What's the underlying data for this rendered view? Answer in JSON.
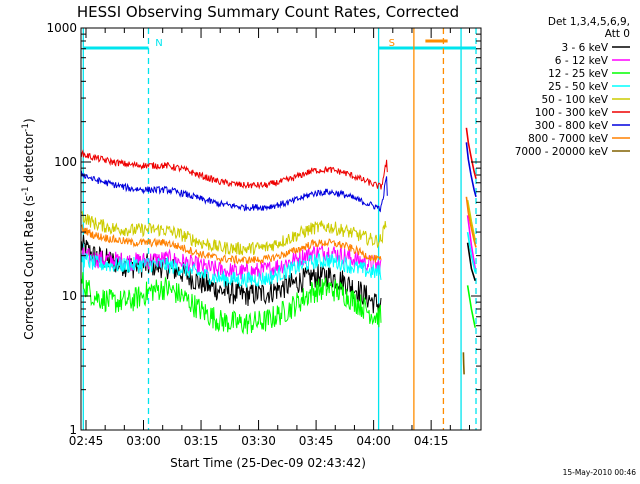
{
  "chart_data": {
    "type": "line",
    "title": "HESSI Observing Summary Count Rates, Corrected",
    "xlabel": "Start Time (25-Dec-09 02:43:42)",
    "ylabel": "Corrected Count Rate (s",
    "ylabel_sup": "-1",
    "ylabel_mid": " detector",
    "ylabel_sup2": "-1",
    "ylabel_end": ")",
    "y_scale": "log",
    "ylim": [
      1,
      1000
    ],
    "y_ticks": [
      "1",
      "10",
      "100",
      "1000"
    ],
    "x_range_minutes": [
      163.7,
      268
    ],
    "x_ticks": [
      {
        "label": "02:45",
        "minute": 165
      },
      {
        "label": "03:00",
        "minute": 180
      },
      {
        "label": "03:15",
        "minute": 195
      },
      {
        "label": "03:30",
        "minute": 210
      },
      {
        "label": "03:45",
        "minute": 225
      },
      {
        "label": "04:00",
        "minute": 240
      },
      {
        "label": "04:15",
        "minute": 255
      }
    ],
    "legend_header": [
      "Det 1,3,4,5,6,9,",
      "Att 0"
    ],
    "legend_placement": "right",
    "timestamp": "15-May-2010 00:46",
    "flags": [
      {
        "label": "N",
        "color": "#00e5ee",
        "start": 164.3,
        "end": 181.3
      },
      {
        "label": "S",
        "color": "#00e5ee",
        "start": 241.3,
        "end": 266.7
      },
      {
        "label": "",
        "color": "#ff8c00",
        "start": 253.5,
        "end": 259.3
      }
    ],
    "vlines": [
      {
        "minute": 164.3,
        "color": "#00e5ee",
        "dash": false
      },
      {
        "minute": 181.3,
        "color": "#00e5ee",
        "dash": true
      },
      {
        "minute": 241.3,
        "color": "#00e5ee",
        "dash": false
      },
      {
        "minute": 250.5,
        "color": "#ff8c00",
        "dash": false
      },
      {
        "minute": 258.2,
        "color": "#ff8c00",
        "dash": true
      },
      {
        "minute": 262.8,
        "color": "#00e5ee",
        "dash": false
      },
      {
        "minute": 266.7,
        "color": "#00e5ee",
        "dash": true
      }
    ],
    "series": [
      {
        "name": "3 - 6 keV",
        "color": "#000000",
        "noise": 0.09,
        "points": [
          [
            163.8,
            24
          ],
          [
            167,
            20
          ],
          [
            172,
            18
          ],
          [
            177,
            16.5
          ],
          [
            182,
            17
          ],
          [
            186,
            16.5
          ],
          [
            190,
            15
          ],
          [
            195,
            12.5
          ],
          [
            200,
            11
          ],
          [
            206,
            10.2
          ],
          [
            212,
            10.5
          ],
          [
            218,
            12
          ],
          [
            224,
            14
          ],
          [
            228,
            14.2
          ],
          [
            232,
            13
          ],
          [
            236,
            11
          ],
          [
            240,
            9
          ],
          [
            242,
            8.5
          ]
        ],
        "tail": [
          [
            264.5,
            25
          ],
          [
            265.5,
            16
          ],
          [
            266.5,
            13
          ]
        ]
      },
      {
        "name": "6 - 12 keV",
        "color": "#ff00ff",
        "noise": 0.07,
        "points": [
          [
            163.8,
            20
          ],
          [
            167,
            19
          ],
          [
            172,
            18.5
          ],
          [
            177,
            18
          ],
          [
            182,
            18.5
          ],
          [
            186,
            18.8
          ],
          [
            190,
            18
          ],
          [
            195,
            16.5
          ],
          [
            200,
            15.5
          ],
          [
            206,
            15
          ],
          [
            212,
            15.5
          ],
          [
            218,
            18
          ],
          [
            224,
            21
          ],
          [
            228,
            21.5
          ],
          [
            232,
            20
          ],
          [
            236,
            18.5
          ],
          [
            240,
            17
          ],
          [
            242,
            17
          ]
        ],
        "tail": [
          [
            264.5,
            40
          ],
          [
            265.5,
            24
          ],
          [
            266.5,
            16
          ]
        ]
      },
      {
        "name": "12 - 25 keV",
        "color": "#00ff00",
        "noise": 0.09,
        "points": [
          [
            163.8,
            13
          ],
          [
            167,
            10
          ],
          [
            172,
            9
          ],
          [
            177,
            9.2
          ],
          [
            182,
            11
          ],
          [
            186,
            11.5
          ],
          [
            190,
            10
          ],
          [
            195,
            7.8
          ],
          [
            200,
            6.5
          ],
          [
            206,
            6.2
          ],
          [
            212,
            6.5
          ],
          [
            218,
            8
          ],
          [
            224,
            10.8
          ],
          [
            228,
            11.5
          ],
          [
            232,
            10.5
          ],
          [
            236,
            8.8
          ],
          [
            240,
            7.2
          ],
          [
            242,
            7
          ]
        ],
        "tail": [
          [
            264.5,
            12
          ],
          [
            265.5,
            8
          ],
          [
            266.5,
            5.8
          ]
        ]
      },
      {
        "name": "25 - 50 keV",
        "color": "#00ffff",
        "noise": 0.06,
        "points": [
          [
            163.8,
            19
          ],
          [
            167,
            17.5
          ],
          [
            172,
            17
          ],
          [
            177,
            17
          ],
          [
            182,
            17.2
          ],
          [
            186,
            17
          ],
          [
            190,
            16
          ],
          [
            195,
            14.5
          ],
          [
            200,
            13.5
          ],
          [
            206,
            13.2
          ],
          [
            212,
            13.5
          ],
          [
            218,
            15.5
          ],
          [
            224,
            18
          ],
          [
            228,
            18.5
          ],
          [
            232,
            17.5
          ],
          [
            236,
            16
          ],
          [
            240,
            15
          ],
          [
            242,
            15
          ]
        ],
        "tail": [
          [
            264.5,
            30
          ],
          [
            265.5,
            20
          ],
          [
            266.5,
            15
          ]
        ]
      },
      {
        "name": "50 - 100 keV",
        "color": "#cccc00",
        "noise": 0.05,
        "points": [
          [
            163.8,
            40
          ],
          [
            167,
            35
          ],
          [
            172,
            32
          ],
          [
            177,
            31
          ],
          [
            182,
            31.5
          ],
          [
            186,
            31
          ],
          [
            190,
            28.5
          ],
          [
            195,
            25
          ],
          [
            200,
            23
          ],
          [
            206,
            22.5
          ],
          [
            212,
            23
          ],
          [
            218,
            27
          ],
          [
            224,
            32
          ],
          [
            228,
            33
          ],
          [
            232,
            31
          ],
          [
            236,
            28.5
          ],
          [
            240,
            26
          ],
          [
            242,
            26
          ],
          [
            243.5,
            38
          ]
        ],
        "tail": [
          [
            264.5,
            52
          ],
          [
            265.5,
            36
          ],
          [
            266.5,
            26
          ]
        ]
      },
      {
        "name": "100 - 300 keV",
        "color": "#ee0000",
        "noise": 0.025,
        "points": [
          [
            163.8,
            115
          ],
          [
            167,
            108
          ],
          [
            172,
            100
          ],
          [
            177,
            95
          ],
          [
            182,
            94
          ],
          [
            186,
            94
          ],
          [
            190,
            89
          ],
          [
            195,
            79
          ],
          [
            200,
            71
          ],
          [
            206,
            67
          ],
          [
            212,
            67
          ],
          [
            218,
            74
          ],
          [
            224,
            86
          ],
          [
            228,
            88
          ],
          [
            232,
            84
          ],
          [
            236,
            76
          ],
          [
            240,
            68
          ],
          [
            242,
            65
          ],
          [
            243.5,
            105
          ],
          [
            243.6,
            68
          ]
        ],
        "tail": [
          [
            264.2,
            180
          ],
          [
            264.7,
            140
          ],
          [
            265.4,
            110
          ],
          [
            266.2,
            85
          ],
          [
            266.7,
            75
          ]
        ]
      },
      {
        "name": "300 - 800 keV",
        "color": "#0000dd",
        "noise": 0.025,
        "points": [
          [
            163.8,
            82
          ],
          [
            167,
            74
          ],
          [
            172,
            68
          ],
          [
            177,
            63
          ],
          [
            182,
            62
          ],
          [
            186,
            62
          ],
          [
            190,
            58.5
          ],
          [
            195,
            53
          ],
          [
            200,
            48.5
          ],
          [
            206,
            46
          ],
          [
            212,
            46
          ],
          [
            218,
            50
          ],
          [
            224,
            58
          ],
          [
            228,
            60
          ],
          [
            232,
            57.5
          ],
          [
            236,
            52
          ],
          [
            240,
            47
          ],
          [
            242,
            45
          ],
          [
            243.5,
            82
          ],
          [
            243.6,
            47
          ]
        ],
        "tail": [
          [
            264.2,
            140
          ],
          [
            264.7,
            105
          ],
          [
            265.4,
            80
          ],
          [
            266.2,
            62
          ],
          [
            266.7,
            55
          ]
        ]
      },
      {
        "name": "800 - 7000 keV",
        "color": "#ff8000",
        "noise": 0.03,
        "points": [
          [
            163.8,
            32
          ],
          [
            167,
            28.5
          ],
          [
            172,
            26.5
          ],
          [
            177,
            25
          ],
          [
            182,
            25
          ],
          [
            186,
            25
          ],
          [
            190,
            23
          ],
          [
            195,
            20.5
          ],
          [
            200,
            19
          ],
          [
            206,
            18.5
          ],
          [
            212,
            18.8
          ],
          [
            218,
            21
          ],
          [
            224,
            24.5
          ],
          [
            228,
            25
          ],
          [
            232,
            24
          ],
          [
            236,
            21.5
          ],
          [
            240,
            19
          ],
          [
            242,
            18.5
          ]
        ],
        "tail": [
          [
            264.2,
            55
          ],
          [
            264.7,
            42
          ],
          [
            265.4,
            33
          ],
          [
            266.2,
            26
          ],
          [
            266.7,
            23
          ]
        ]
      },
      {
        "name": "7000 - 20000 keV",
        "color": "#806000",
        "noise": 0,
        "points": [],
        "tail": [
          [
            263.4,
            3.8
          ],
          [
            263.5,
            3.1
          ],
          [
            263.6,
            2.6
          ]
        ]
      }
    ]
  }
}
